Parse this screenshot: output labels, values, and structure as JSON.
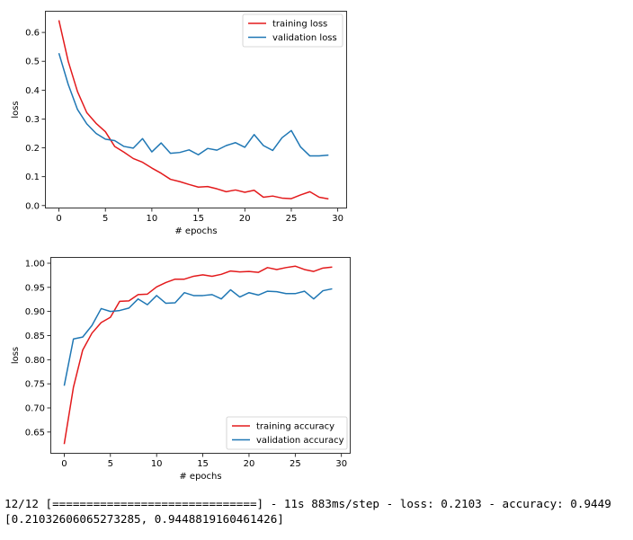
{
  "chart_data": [
    {
      "type": "line",
      "xlabel": "# epochs",
      "ylabel": "loss",
      "xlim": [
        -1.5,
        31
      ],
      "ylim": [
        -0.01,
        0.675
      ],
      "xticks": [
        0,
        5,
        10,
        15,
        20,
        25,
        30
      ],
      "xtick_labels": [
        "0",
        "5",
        "10",
        "15",
        "20",
        "25",
        "30"
      ],
      "yticks": [
        0.0,
        0.1,
        0.2,
        0.3,
        0.4,
        0.5,
        0.6
      ],
      "ytick_labels": [
        "0.0",
        "0.1",
        "0.2",
        "0.3",
        "0.4",
        "0.5",
        "0.6"
      ],
      "grid": false,
      "legend_position": "top-right",
      "x": [
        0,
        1,
        2,
        3,
        4,
        5,
        6,
        7,
        8,
        9,
        10,
        11,
        12,
        13,
        14,
        15,
        16,
        17,
        18,
        19,
        20,
        21,
        22,
        23,
        24,
        25,
        26,
        27,
        28,
        29
      ],
      "series": [
        {
          "name": "training loss",
          "color": "#e31a1c",
          "values": [
            0.642,
            0.5,
            0.395,
            0.322,
            0.285,
            0.256,
            0.205,
            0.185,
            0.163,
            0.15,
            0.13,
            0.112,
            0.091,
            0.083,
            0.073,
            0.064,
            0.066,
            0.058,
            0.048,
            0.054,
            0.046,
            0.053,
            0.029,
            0.033,
            0.026,
            0.024,
            0.037,
            0.048,
            0.029,
            0.023
          ]
        },
        {
          "name": "validation loss",
          "color": "#1f77b4",
          "values": [
            0.528,
            0.42,
            0.333,
            0.283,
            0.25,
            0.23,
            0.225,
            0.205,
            0.199,
            0.232,
            0.186,
            0.217,
            0.181,
            0.184,
            0.193,
            0.176,
            0.198,
            0.192,
            0.208,
            0.218,
            0.202,
            0.246,
            0.208,
            0.191,
            0.235,
            0.26,
            0.203,
            0.172,
            0.172,
            0.175
          ]
        }
      ]
    },
    {
      "type": "line",
      "xlabel": "# epochs",
      "ylabel": "loss",
      "xlim": [
        -1.5,
        31
      ],
      "ylim": [
        0.605,
        1.013
      ],
      "xticks": [
        0,
        5,
        10,
        15,
        20,
        25,
        30
      ],
      "xtick_labels": [
        "0",
        "5",
        "10",
        "15",
        "20",
        "25",
        "30"
      ],
      "yticks": [
        0.65,
        0.7,
        0.75,
        0.8,
        0.85,
        0.9,
        0.95,
        1.0
      ],
      "ytick_labels": [
        "0.65",
        "0.70",
        "0.75",
        "0.80",
        "0.85",
        "0.90",
        "0.95",
        "1.00"
      ],
      "grid": false,
      "legend_position": "bottom-right",
      "x": [
        0,
        1,
        2,
        3,
        4,
        5,
        6,
        7,
        8,
        9,
        10,
        11,
        12,
        13,
        14,
        15,
        16,
        17,
        18,
        19,
        20,
        21,
        22,
        23,
        24,
        25,
        26,
        27,
        28,
        29
      ],
      "series": [
        {
          "name": "training accuracy",
          "color": "#e31a1c",
          "values": [
            0.625,
            0.743,
            0.82,
            0.855,
            0.877,
            0.888,
            0.921,
            0.922,
            0.935,
            0.936,
            0.951,
            0.96,
            0.967,
            0.967,
            0.973,
            0.976,
            0.973,
            0.977,
            0.984,
            0.982,
            0.983,
            0.981,
            0.991,
            0.987,
            0.991,
            0.994,
            0.987,
            0.983,
            0.99,
            0.992
          ]
        },
        {
          "name": "validation accuracy",
          "color": "#1f77b4",
          "values": [
            0.746,
            0.843,
            0.847,
            0.871,
            0.906,
            0.9,
            0.902,
            0.907,
            0.926,
            0.914,
            0.933,
            0.917,
            0.918,
            0.939,
            0.933,
            0.933,
            0.935,
            0.926,
            0.945,
            0.93,
            0.939,
            0.934,
            0.942,
            0.941,
            0.937,
            0.937,
            0.942,
            0.926,
            0.943,
            0.947
          ]
        }
      ]
    }
  ],
  "console": {
    "line1": "12/12 [==============================] - 11s 883ms/step - loss: 0.2103 - accuracy: 0.9449",
    "line2": "[0.21032606065273285, 0.9448819160461426]"
  }
}
